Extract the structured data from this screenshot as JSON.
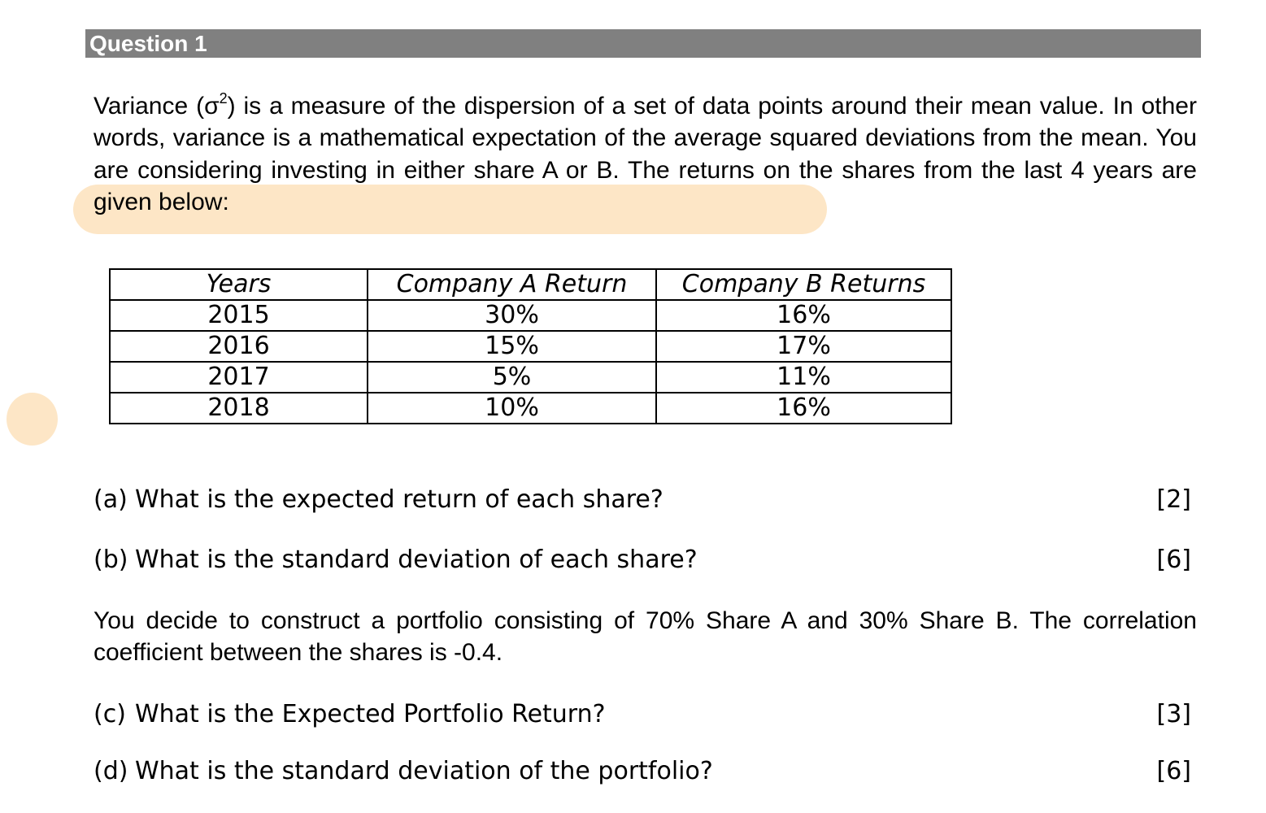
{
  "header": {
    "title": "Question 1"
  },
  "intro": {
    "before_sup": "Variance (σ",
    "sup": "2",
    "after_sup": ") is a measure of the dispersion of a set of data points around their mean value. In other words, variance is a mathematical expectation of the average squared deviations from the mean. You are considering investing in either share A or B. The returns on the shares from the last 4 years are given below:"
  },
  "table": {
    "headers": [
      "Years",
      "Company A Return",
      "Company B Returns"
    ],
    "rows": [
      [
        "2015",
        "30%",
        "16%"
      ],
      [
        "2016",
        "15%",
        "17%"
      ],
      [
        "2017",
        "5%",
        "11%"
      ],
      [
        "2018",
        "10%",
        "16%"
      ]
    ]
  },
  "questions": [
    {
      "label": "(a)",
      "text": "What is the expected return of each share?",
      "marks": "[2]"
    },
    {
      "label": "(b)",
      "text": "What is the standard deviation of each share?",
      "marks": "[6]"
    },
    {
      "label": "(c)",
      "text": "What is the Expected Portfolio Return?",
      "marks": "[3]"
    },
    {
      "label": "(d)",
      "text": "What is the standard deviation of the portfolio?",
      "marks": "[6]"
    }
  ],
  "portfolio_text": "You decide to construct a portfolio consisting of 70% Share A and 30% Share B.  The correlation coefficient between the shares is -0.4.",
  "colors": {
    "header_bar": "#808080",
    "highlight": "#fde6c6"
  }
}
